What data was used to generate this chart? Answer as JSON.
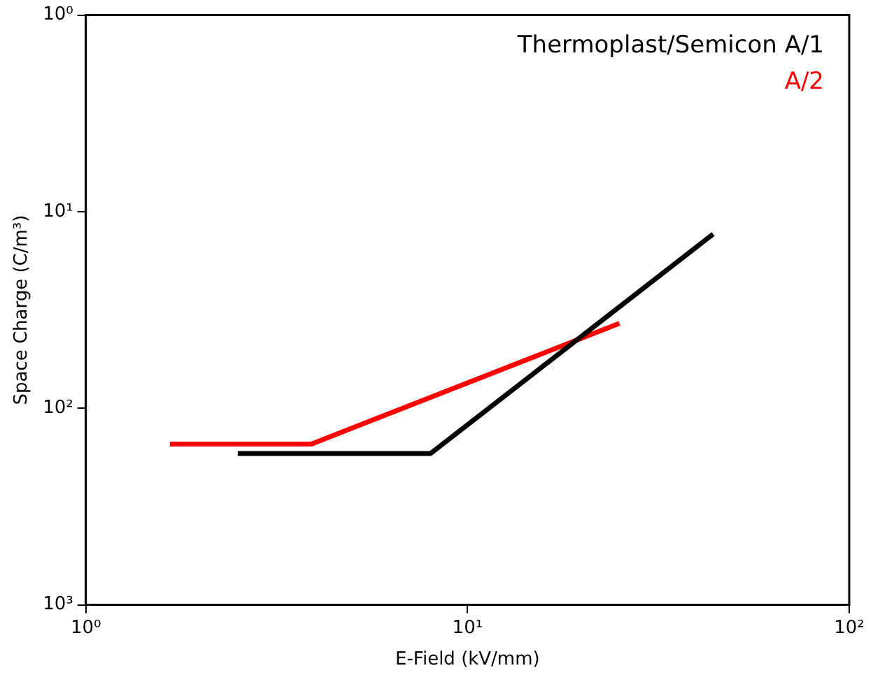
{
  "chart_data": {
    "type": "line",
    "xlabel": "E-Field (kV/mm)",
    "ylabel": "Space Charge (C/m³)",
    "log": "xy",
    "grid": false,
    "legend": "top right",
    "marker": "none",
    "line_style": "solid",
    "xlim": [
      1,
      100
    ],
    "xticks": [
      {
        "value": 1,
        "label": "10⁰"
      },
      {
        "value": 10,
        "label": "10¹"
      },
      {
        "value": 100,
        "label": "10²"
      }
    ],
    "ylim": [
      1000,
      1
    ],
    "yticks": [
      {
        "value": 1,
        "label": "10⁰"
      },
      {
        "value": 10,
        "label": "10¹"
      },
      {
        "value": 100,
        "label": "10²"
      },
      {
        "value": 1000,
        "label": "10³"
      }
    ],
    "series": [
      {
        "name": "Thermoplast/Semicon A/1",
        "color": "#000000",
        "x": [
          2.5,
          8.0,
          44
        ],
        "values": [
          170,
          170,
          13
        ]
      },
      {
        "name": "A/2",
        "color": "#ff0000",
        "x": [
          1.66,
          3.9,
          25
        ],
        "values": [
          152,
          152,
          37
        ]
      }
    ]
  }
}
